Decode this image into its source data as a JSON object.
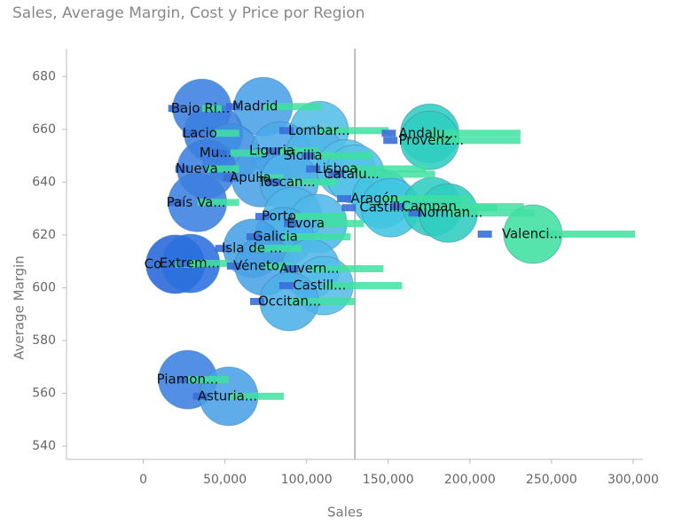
{
  "chart_data": {
    "type": "scatter",
    "title": "Sales, Average Margin, Cost y Price por Region",
    "x_label": "Sales",
    "y_label": "Average Margin",
    "xlim": [
      -47000,
      306000
    ],
    "ylim": [
      535,
      690.5
    ],
    "xticks": [
      0,
      {
        "value": 50000,
        "label": "50,000"
      },
      {
        "value": 100000,
        "label": "100,000"
      },
      {
        "value": 150000,
        "label": "150,000"
      },
      {
        "value": 200000,
        "label": "200,000"
      },
      {
        "value": 250000,
        "label": "250,000"
      },
      {
        "value": 300000,
        "label": "300,000"
      }
    ],
    "yticks": [
      540,
      560,
      580,
      600,
      620,
      640,
      660,
      680
    ],
    "reference_x": 129600,
    "cost_color": "#3a6fd8",
    "price_color": "#3fe0a0",
    "points": [
      {
        "label": "Bajo Ri...",
        "x": 35950,
        "y": 667.9,
        "cost": 15300,
        "price": 48000,
        "color": "#3b7fe0"
      },
      {
        "label": "Madrid",
        "x": 73500,
        "y": 668.6,
        "cost": 50700,
        "price": 109000,
        "color": "#4a9fe6"
      },
      {
        "label": "Lacio",
        "x": 43000,
        "y": 658.5,
        "cost": 24000,
        "price": 58800,
        "color": "#3b80e0"
      },
      {
        "label": "Lombar...",
        "x": 107800,
        "y": 659.5,
        "cost": 83300,
        "price": 150300,
        "color": "#55bde8"
      },
      {
        "label": "Andalu...",
        "x": 175400,
        "y": 658.5,
        "cost": 146000,
        "price": 231000,
        "color": "#2fcdc0"
      },
      {
        "label": "Provenz...",
        "x": 175400,
        "y": 655.8,
        "cost": 147000,
        "price": 231000,
        "color": "#2fcdc0"
      },
      {
        "label": "Mu...",
        "x": 53400,
        "y": 651,
        "cost": 42500,
        "price": 75200,
        "color": "#3f8fe2"
      },
      {
        "label": "Liguria",
        "x": 83900,
        "y": 651.8,
        "cost": 75200,
        "price": 107800,
        "color": "#4aa8e8"
      },
      {
        "label": "Sicilia",
        "x": 105000,
        "y": 650,
        "cost": 97000,
        "price": 140500,
        "color": "#50b5e8"
      },
      {
        "label": "Nueva ...",
        "x": 38700,
        "y": 645,
        "cost": 19600,
        "price": 58800,
        "color": "#3b80e0"
      },
      {
        "label": "Lisboa",
        "x": 124200,
        "y": 645,
        "cost": 99700,
        "price": 173200,
        "color": "#55c0e8"
      },
      {
        "label": "Catalu...",
        "x": 129600,
        "y": 643,
        "cost": 113300,
        "price": 178700,
        "color": "#55c0e8"
      },
      {
        "label": "Apulia",
        "x": 71900,
        "y": 641.7,
        "cost": 49000,
        "price": 86100,
        "color": "#4aa0e6"
      },
      {
        "label": "Toscan...",
        "x": 89300,
        "y": 640,
        "cost": 75200,
        "price": 118700,
        "color": "#50b0e8"
      },
      {
        "label": "País Va...",
        "x": 33200,
        "y": 632.3,
        "cost": 15300,
        "price": 58800,
        "color": "#3b80e0"
      },
      {
        "label": "Aragón",
        "x": 146000,
        "y": 633.7,
        "cost": 118700,
        "price": 200400,
        "color": "#40c5e0"
      },
      {
        "label": "Castill...",
        "x": 151400,
        "y": 630.3,
        "cost": 121500,
        "price": 216800,
        "color": "#40c5e0"
      },
      {
        "label": "Campan...",
        "x": 177000,
        "y": 630.7,
        "cost": 151400,
        "price": 233100,
        "color": "#30cdc0"
      },
      {
        "label": "Norman...",
        "x": 186800,
        "y": 628.3,
        "cost": 162300,
        "price": 239700,
        "color": "#30cdc0"
      },
      {
        "label": "Porto",
        "x": 91500,
        "y": 627,
        "cost": 68600,
        "price": 124200,
        "color": "#50b5e8"
      },
      {
        "label": "Évora",
        "x": 106800,
        "y": 624.3,
        "cost": 86100,
        "price": 135100,
        "color": "#50b8e8"
      },
      {
        "label": "Valenci...",
        "x": 238600,
        "y": 620.3,
        "cost": 204800,
        "price": 301200,
        "color": "#40dfa0"
      },
      {
        "label": "Galicia",
        "x": 86100,
        "y": 619.3,
        "cost": 63200,
        "price": 126900,
        "color": "#4cb0e8"
      },
      {
        "label": "Isla de ...",
        "x": 67000,
        "y": 614.9,
        "cost": 44100,
        "price": 97000,
        "color": "#45a0e6"
      },
      {
        "label": "Co",
        "x": 19600,
        "y": 608.9,
        "cost": 9800,
        "price": 31600,
        "color": "#2565dc"
      },
      {
        "label": "Extrem...",
        "x": 28900,
        "y": 609.2,
        "cost": 20700,
        "price": 53400,
        "color": "#2a6fde"
      },
      {
        "label": "Véneto",
        "x": 74100,
        "y": 608.2,
        "cost": 51200,
        "price": 91500,
        "color": "#4aa3e6"
      },
      {
        "label": "Auvern...",
        "x": 102400,
        "y": 607.2,
        "cost": 86100,
        "price": 147100,
        "color": "#50b8e8"
      },
      {
        "label": "Castill...",
        "x": 110600,
        "y": 600.8,
        "cost": 83300,
        "price": 158500,
        "color": "#55bde8"
      },
      {
        "label": "Occitan...",
        "x": 89300,
        "y": 594.8,
        "cost": 65400,
        "price": 129600,
        "color": "#4cb0e8"
      },
      {
        "label": "Piamon...",
        "x": 27200,
        "y": 565.2,
        "cost": 20700,
        "price": 52300,
        "color": "#3b80e0"
      },
      {
        "label": "Asturia...",
        "x": 52300,
        "y": 558.9,
        "cost": 30500,
        "price": 86100,
        "color": "#4a9fe6"
      }
    ]
  }
}
